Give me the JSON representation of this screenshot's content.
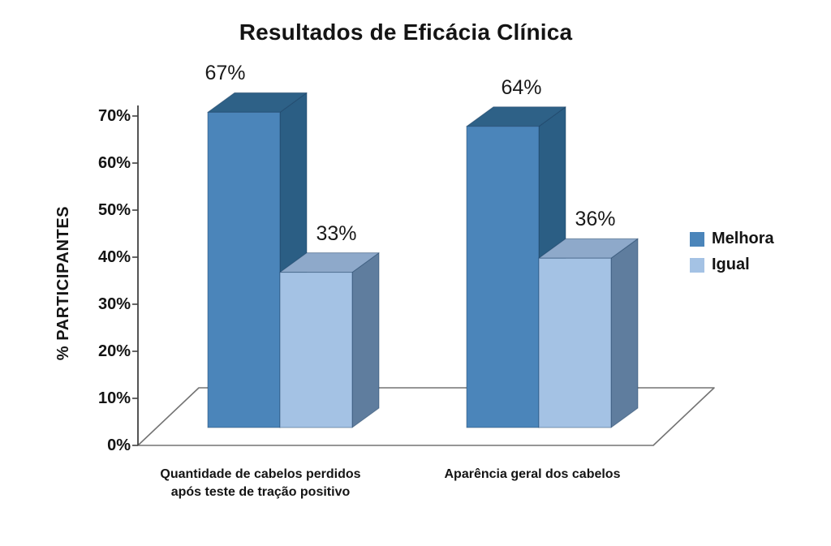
{
  "chart_data": {
    "type": "bar",
    "projection": "3d",
    "title": "Resultados de Eficácia Clínica",
    "ylabel": "% PARTICIPANTES",
    "xlabel": "",
    "categories": [
      "Quantidade de cabelos perdidos\napós teste de tração positivo",
      "Aparência geral dos cabelos"
    ],
    "series": [
      {
        "name": "Melhora",
        "values": [
          67,
          64
        ],
        "color": "#4b85ba",
        "side_color": "#2b5e84",
        "top_color": "#2e6187"
      },
      {
        "name": "Igual",
        "values": [
          33,
          36
        ],
        "color": "#a4c2e4",
        "side_color": "#5f7d9e",
        "top_color": "#8ea9ca"
      }
    ],
    "data_labels": [
      [
        "67%",
        "33%"
      ],
      [
        "64%",
        "36%"
      ]
    ],
    "yticks": [
      "0%",
      "10%",
      "20%",
      "30%",
      "40%",
      "50%",
      "60%",
      "70%"
    ],
    "ylim": [
      0,
      70
    ],
    "grid": false,
    "legend_position": "right",
    "axis_color": "#404040",
    "floor_color": "#737373",
    "background_color": "#ffffff"
  }
}
